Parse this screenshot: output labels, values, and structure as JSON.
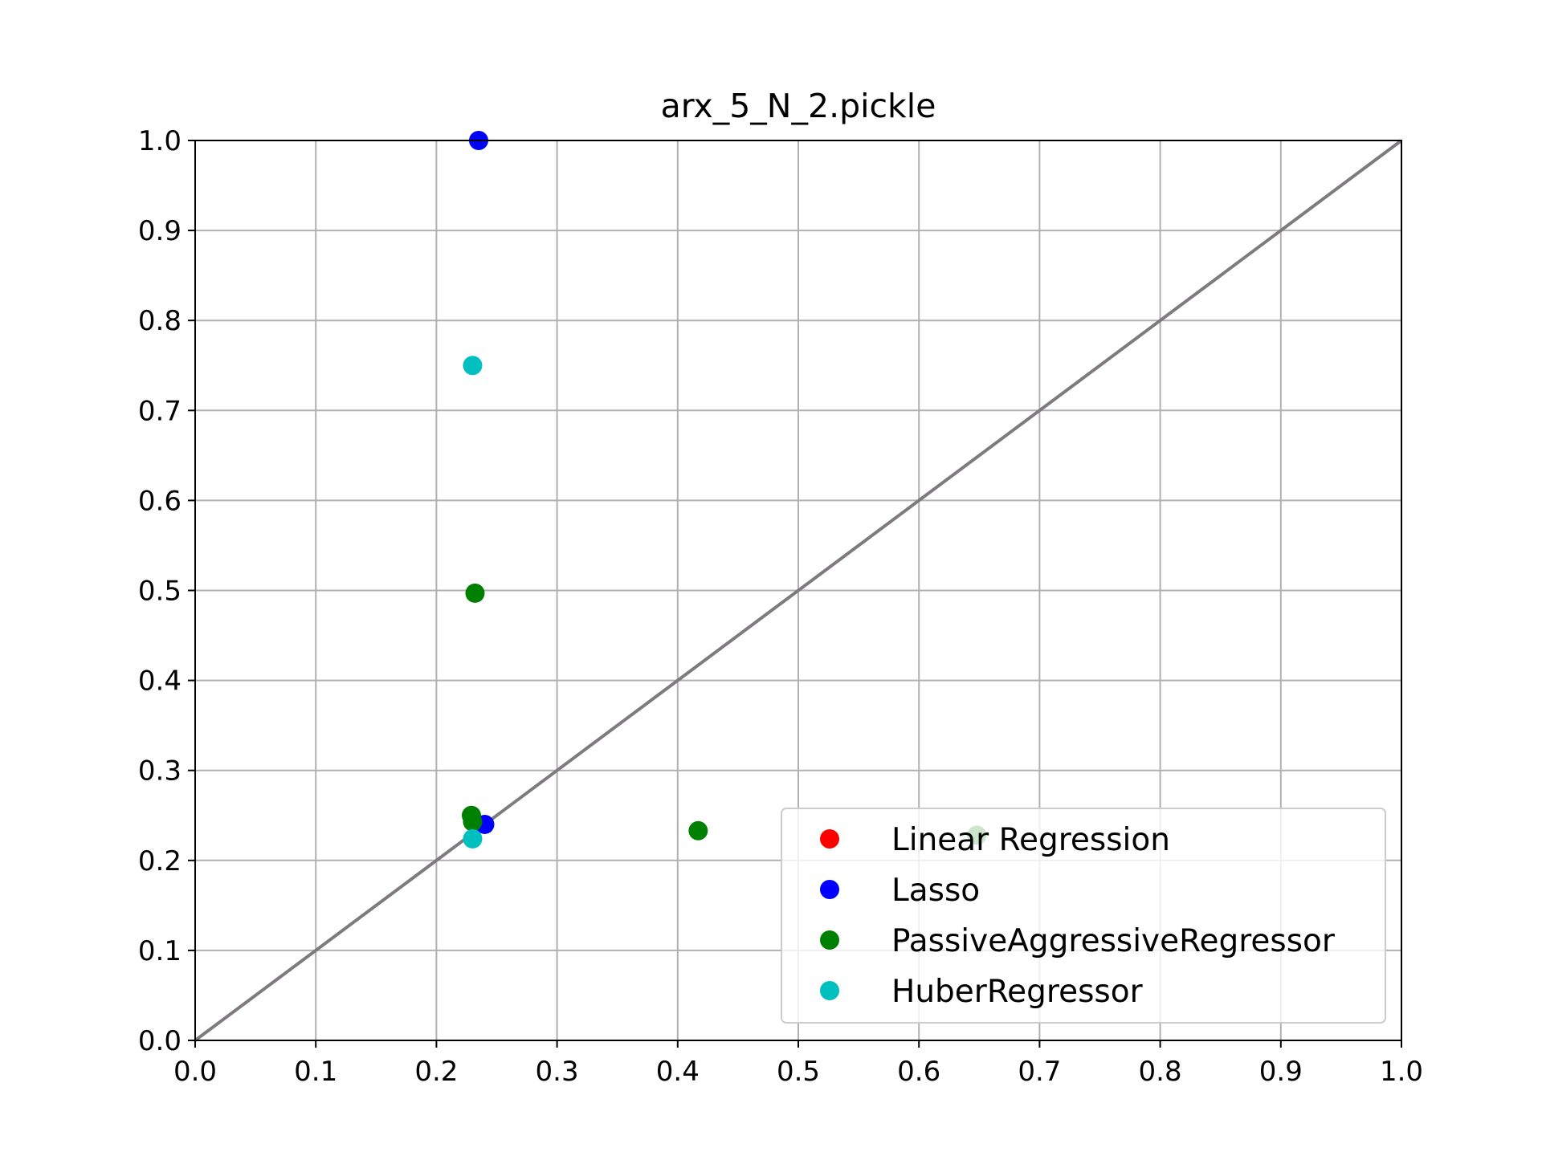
{
  "chart_data": {
    "type": "scatter",
    "title": "arx_5_N_2.pickle",
    "xlabel": "",
    "ylabel": "",
    "xlim": [
      0.0,
      1.0
    ],
    "ylim": [
      0.0,
      1.0
    ],
    "x_ticks": [
      "0.0",
      "0.1",
      "0.2",
      "0.3",
      "0.4",
      "0.5",
      "0.6",
      "0.7",
      "0.8",
      "0.9",
      "1.0"
    ],
    "y_ticks": [
      "0.0",
      "0.1",
      "0.2",
      "0.3",
      "0.4",
      "0.5",
      "0.6",
      "0.7",
      "0.8",
      "0.9",
      "1.0"
    ],
    "grid": true,
    "legend_position": "lower-right",
    "reference_line": {
      "x": [
        0.0,
        1.0
      ],
      "y": [
        0.0,
        1.0
      ],
      "color": "#7f7a7f"
    },
    "series": [
      {
        "name": "Linear Regression",
        "color": "#ff0000",
        "points": []
      },
      {
        "name": "Lasso",
        "color": "#0000ff",
        "points": [
          [
            0.235,
            1.0
          ],
          [
            0.24,
            0.24
          ]
        ]
      },
      {
        "name": "PassiveAggressiveRegressor",
        "color": "#008000",
        "points": [
          [
            0.232,
            0.497
          ],
          [
            0.229,
            0.25
          ],
          [
            0.23,
            0.243
          ],
          [
            0.417,
            0.233
          ],
          [
            0.648,
            0.228
          ]
        ]
      },
      {
        "name": "HuberRegressor",
        "color": "#00bfbf",
        "points": [
          [
            0.23,
            0.75
          ],
          [
            0.23,
            0.224
          ]
        ]
      }
    ]
  }
}
